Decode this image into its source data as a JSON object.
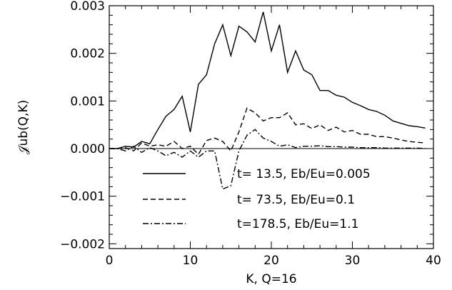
{
  "chart_data": {
    "type": "line",
    "xlabel": "K,   Q=16",
    "ylabel": "𝒥ub(Q,K)",
    "xlim": [
      0,
      40
    ],
    "ylim": [
      -0.0021,
      0.003
    ],
    "xticks": [
      0,
      10,
      20,
      30,
      40
    ],
    "xtick_labels": [
      "0",
      "10",
      "20",
      "30",
      "40"
    ],
    "yticks": [
      -0.002,
      -0.001,
      0.0,
      0.001,
      0.002,
      0.003
    ],
    "ytick_labels": [
      "−0.002",
      "−0.001",
      "0.000",
      "0.001",
      "0.002",
      "0.003"
    ],
    "zero_line": true,
    "legend_position": "lower-center",
    "series": [
      {
        "name": "t= 13.5, Eb/Eu=0.005",
        "style": "solid",
        "x": [
          0,
          1,
          2,
          3,
          4,
          5,
          6,
          7,
          8,
          9,
          10,
          11,
          12,
          13,
          14,
          15,
          16,
          17,
          18,
          19,
          20,
          21,
          22,
          23,
          24,
          25,
          26,
          27,
          28,
          29,
          30,
          31,
          32,
          33,
          34,
          35,
          36,
          37,
          38,
          39
        ],
        "y": [
          0.0,
          0.0,
          5e-05,
          3e-05,
          0.00015,
          0.0001,
          0.0004,
          0.00068,
          0.00082,
          0.0011,
          0.00035,
          0.00135,
          0.00155,
          0.0022,
          0.0026,
          0.00195,
          0.00257,
          0.00245,
          0.00224,
          0.00287,
          0.00205,
          0.0026,
          0.0016,
          0.00205,
          0.00165,
          0.00155,
          0.00122,
          0.00122,
          0.00112,
          0.00108,
          0.00097,
          0.0009,
          0.00082,
          0.00078,
          0.0007,
          0.00058,
          0.00053,
          0.00048,
          0.00046,
          0.00043
        ]
      },
      {
        "name": "t= 73.5, Eb/Eu=0.1",
        "style": "dashed",
        "x": [
          0,
          1,
          2,
          3,
          4,
          5,
          6,
          7,
          8,
          9,
          10,
          11,
          12,
          13,
          14,
          15,
          16,
          17,
          18,
          19,
          20,
          21,
          22,
          23,
          24,
          25,
          26,
          27,
          28,
          29,
          30,
          31,
          32,
          33,
          34,
          35,
          36,
          37,
          38,
          39
        ],
        "y": [
          0.0,
          0.0,
          2e-05,
          -5e-05,
          0.00012,
          5e-05,
          8e-05,
          5e-05,
          0.00015,
          0.0,
          5e-05,
          -0.00012,
          0.00017,
          0.00022,
          0.00015,
          -5e-05,
          0.00035,
          0.00085,
          0.00075,
          0.00058,
          0.00065,
          0.00065,
          0.00075,
          0.0005,
          0.00052,
          0.00042,
          0.0005,
          0.00038,
          0.00045,
          0.00035,
          0.00038,
          0.0003,
          0.0003,
          0.00025,
          0.00025,
          0.00022,
          0.00018,
          0.00015,
          0.00013,
          0.00012
        ]
      },
      {
        "name": "t=178.5, Eb/Eu=1.1",
        "style": "dashdot",
        "x": [
          0,
          1,
          2,
          3,
          4,
          5,
          6,
          7,
          8,
          9,
          10,
          11,
          12,
          13,
          14,
          15,
          16,
          17,
          18,
          19,
          20,
          21,
          22,
          23,
          24,
          25,
          26,
          27,
          28,
          29,
          30,
          31,
          32,
          33,
          34,
          35,
          36,
          37,
          38,
          39
        ],
        "y": [
          0.0,
          0.0,
          -5e-05,
          5e-05,
          -8e-05,
          2e-05,
          -5e-05,
          -0.00015,
          -8e-05,
          -0.00018,
          -5e-05,
          -0.00018,
          -5e-05,
          -5e-05,
          -0.00085,
          -0.00078,
          -5e-05,
          0.00028,
          0.0004,
          0.00022,
          0.00015,
          5e-05,
          8e-05,
          2e-05,
          5e-05,
          5e-05,
          6e-05,
          4e-05,
          4e-05,
          3e-05,
          3e-05,
          2e-05,
          2e-05,
          2e-05,
          1e-05,
          1e-05,
          1e-05,
          1e-05,
          1e-05,
          0.0
        ]
      }
    ]
  }
}
